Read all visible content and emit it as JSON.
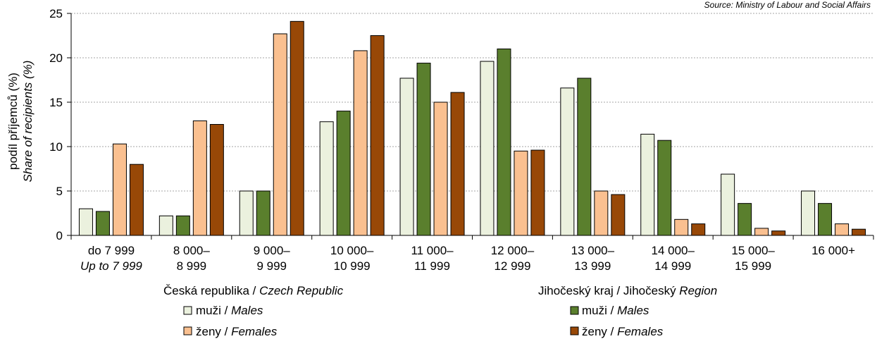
{
  "source": "Source: Ministry of Labour and Social Affairs",
  "colors": {
    "cz_males": "#ebf1de",
    "cz_females": "#fac090",
    "jc_males": "#5a7f2d",
    "jc_females": "#984807",
    "axis": "#000000",
    "grid": "#a6a6a6"
  },
  "chart_data": {
    "type": "bar",
    "ylabel": "podíl příjemců (%)",
    "ylabel_en": "Share of recipients (%)",
    "ylim": [
      0,
      25
    ],
    "yticks": [
      "0",
      "5",
      "10",
      "15",
      "20",
      "25"
    ],
    "grid": "horizontal dashed",
    "categories": [
      {
        "line1": "do 7 999",
        "line2": "Up to 7 999",
        "line2_italic": true
      },
      {
        "line1": "8 000–",
        "line2": "8 999",
        "line2_italic": false
      },
      {
        "line1": "9 000–",
        "line2": "9 999",
        "line2_italic": false
      },
      {
        "line1": "10 000–",
        "line2": "10 999",
        "line2_italic": false
      },
      {
        "line1": "11 000–",
        "line2": "11 999",
        "line2_italic": false
      },
      {
        "line1": "12 000–",
        "line2": "12 999",
        "line2_italic": false
      },
      {
        "line1": "13 000–",
        "line2": "13 999",
        "line2_italic": false
      },
      {
        "line1": "14 000–",
        "line2": "14 999",
        "line2_italic": false
      },
      {
        "line1": "15 000–",
        "line2": "15 999",
        "line2_italic": false
      },
      {
        "line1": "16 000+",
        "line2": "",
        "line2_italic": false
      }
    ],
    "series": [
      {
        "name": "muži / Males",
        "group": "Česká republika / Czech Republic",
        "color_key": "cz_males",
        "values": [
          3.0,
          2.2,
          5.0,
          12.8,
          17.7,
          19.6,
          16.6,
          11.4,
          6.9,
          5.0
        ]
      },
      {
        "name": "muži / Males",
        "group": "Jihočeský kraj / Jihočeský Region",
        "color_key": "jc_males",
        "values": [
          2.7,
          2.2,
          5.0,
          14.0,
          19.4,
          21.0,
          17.7,
          10.7,
          3.6,
          3.6
        ]
      },
      {
        "name": "ženy / Females",
        "group": "Česká republika / Czech Republic",
        "color_key": "cz_females",
        "values": [
          10.3,
          12.9,
          22.7,
          20.8,
          15.0,
          9.5,
          5.0,
          1.8,
          0.8,
          1.3
        ]
      },
      {
        "name": "ženy / Females",
        "group": "Jihočeský kraj / Jihočeský Region",
        "color_key": "jc_females",
        "values": [
          8.0,
          12.5,
          24.1,
          22.5,
          16.1,
          9.6,
          4.6,
          1.3,
          0.5,
          0.7
        ]
      }
    ]
  },
  "legend": {
    "cz_title_plain": "Česká republika / ",
    "cz_title_italic": "Czech Republic",
    "jc_title_plain": "Jihočeský kraj / Jihočeský ",
    "jc_title_italic": "Region",
    "males_plain": "muži / ",
    "males_italic": "Males",
    "females_plain": "ženy / ",
    "females_italic": "Females"
  }
}
